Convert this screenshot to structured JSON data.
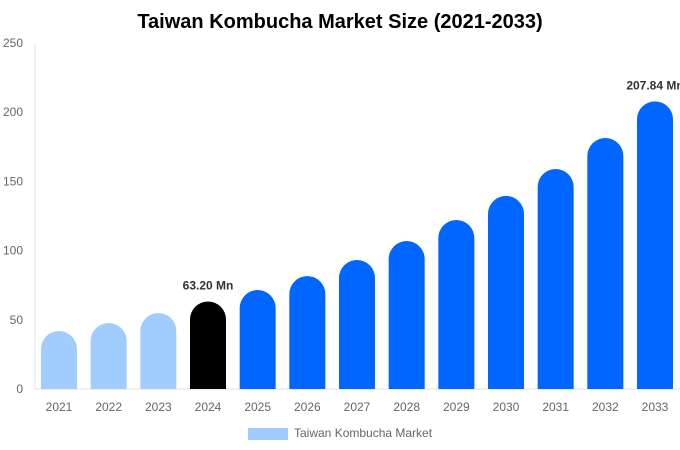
{
  "chart_data": {
    "type": "bar",
    "title": "Taiwan Kombucha Market Size (2021-2033)",
    "xlabel": "",
    "ylabel": "",
    "categories": [
      "2021",
      "2022",
      "2023",
      "2024",
      "2025",
      "2026",
      "2027",
      "2028",
      "2029",
      "2030",
      "2031",
      "2032",
      "2033"
    ],
    "series": [
      {
        "name": "Taiwan Kombucha Market",
        "values": [
          41.9,
          47.7,
          54.9,
          63.2,
          71.5,
          81.6,
          93.2,
          106.9,
          122.1,
          139.5,
          159.0,
          181.4,
          207.84
        ]
      }
    ],
    "bar_colors": [
      "#a0cdfd",
      "#a0cdfd",
      "#a0cdfd",
      "#000000",
      "#0066ff",
      "#0066ff",
      "#0066ff",
      "#0066ff",
      "#0066ff",
      "#0066ff",
      "#0066ff",
      "#0066ff",
      "#0066ff"
    ],
    "data_labels": [
      {
        "category": "2024",
        "text": "63.20 Mn"
      },
      {
        "category": "2033",
        "text": "207.84 Mn"
      }
    ],
    "ylim": [
      0,
      250
    ],
    "yticks": [
      0,
      50,
      100,
      150,
      200,
      250
    ],
    "grid": false,
    "legend": {
      "position": "bottom",
      "label": "Taiwan Kombucha Market",
      "color": "#a0cdfd"
    }
  }
}
